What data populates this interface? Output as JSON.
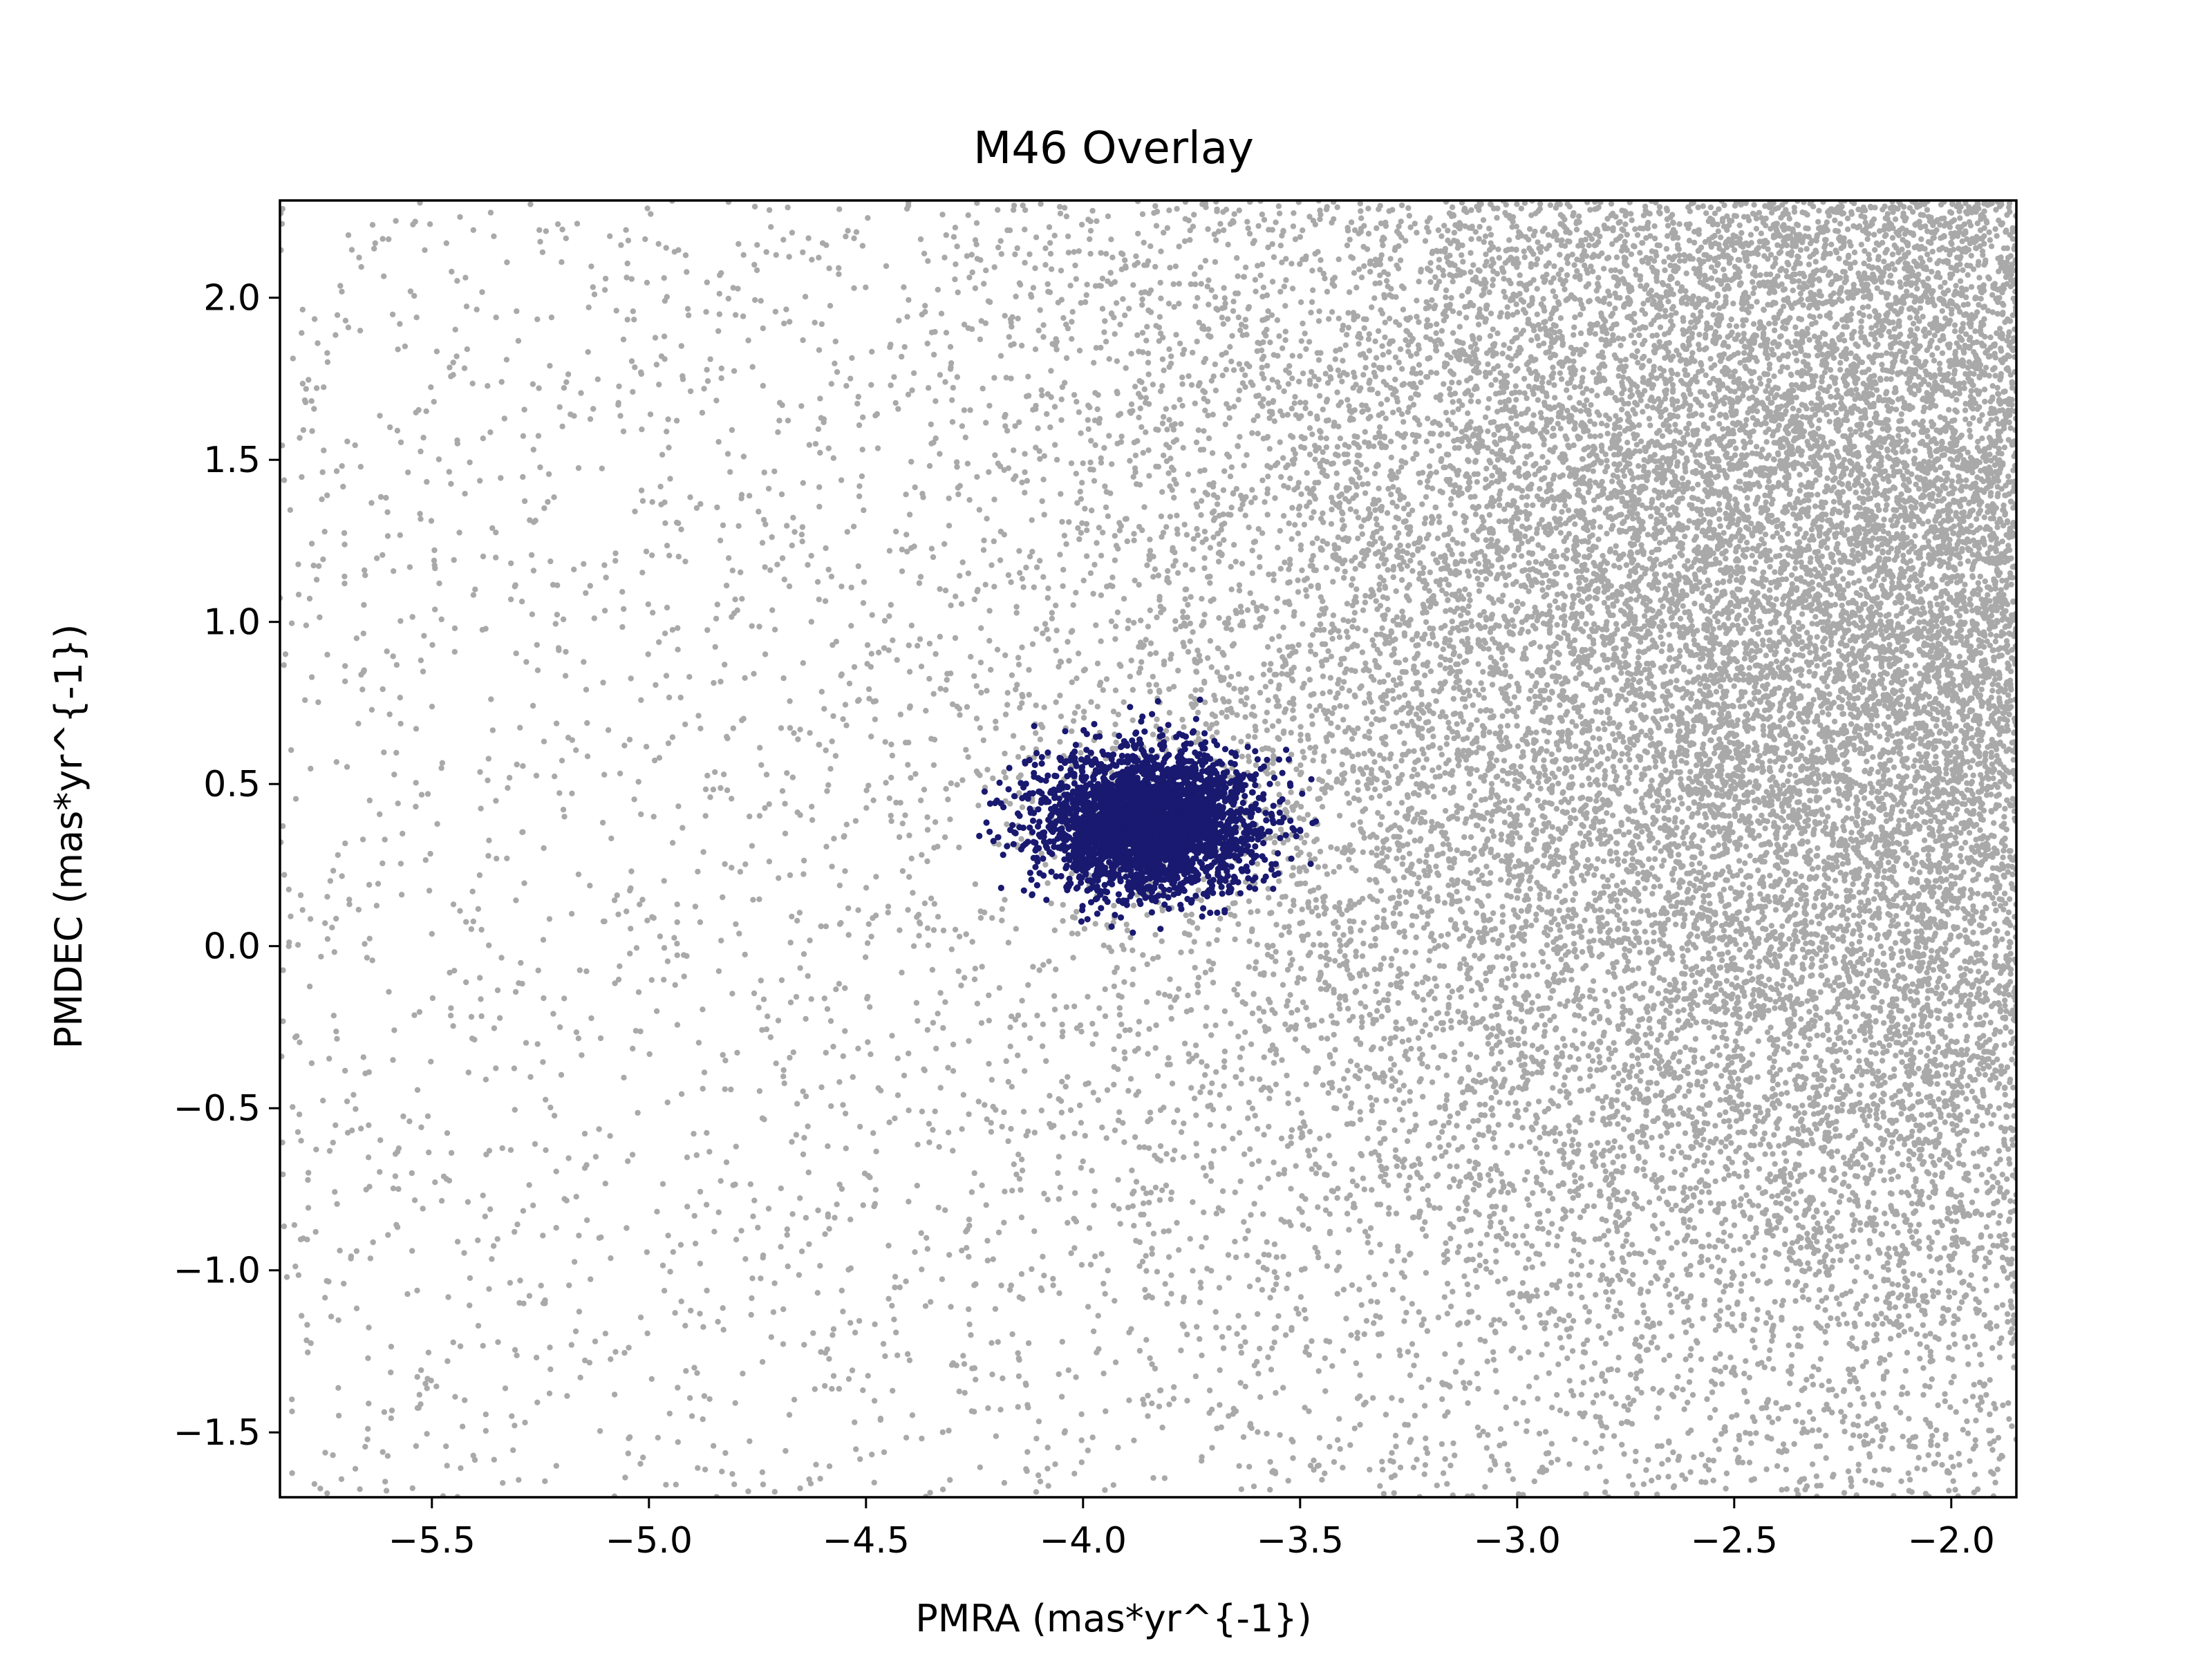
{
  "chart_data": {
    "type": "scatter",
    "title": "M46 Overlay",
    "xlabel": "PMRA (mas*yr^{-1})",
    "ylabel": "PMDEC (mas*yr^{-1})",
    "xlim": [
      -5.85,
      -1.85
    ],
    "ylim": [
      -1.7,
      2.3
    ],
    "xticks": [
      -5.5,
      -5.0,
      -4.5,
      -4.0,
      -3.5,
      -3.0,
      -2.5,
      -2.0
    ],
    "yticks": [
      -1.5,
      -1.0,
      -0.5,
      0.0,
      0.5,
      1.0,
      1.5,
      2.0
    ],
    "xtick_labels": [
      "−5.5",
      "−5.0",
      "−4.5",
      "−4.0",
      "−3.5",
      "−3.0",
      "−2.5",
      "−2.0"
    ],
    "ytick_labels": [
      "−1.5",
      "−1.0",
      "−0.5",
      "0.0",
      "0.5",
      "1.0",
      "1.5",
      "2.0"
    ],
    "grid": false,
    "legend": "none",
    "series": [
      {
        "color": "#a9a9a9",
        "description": "field stars, density increasing toward upper right",
        "distribution": {
          "kind": "field",
          "x_range": [
            -5.85,
            -1.85
          ],
          "y_range": [
            -1.7,
            2.3
          ],
          "density_peak": [
            -1.9,
            1.2
          ]
        }
      },
      {
        "color": "#191970",
        "description": "cluster members",
        "distribution": {
          "kind": "cluster",
          "center": [
            -3.85,
            0.38
          ],
          "spread_x": 0.3,
          "spread_y": 0.26,
          "x_range": [
            -4.25,
            -3.45
          ],
          "y_range": [
            -0.1,
            0.7
          ]
        }
      }
    ]
  }
}
